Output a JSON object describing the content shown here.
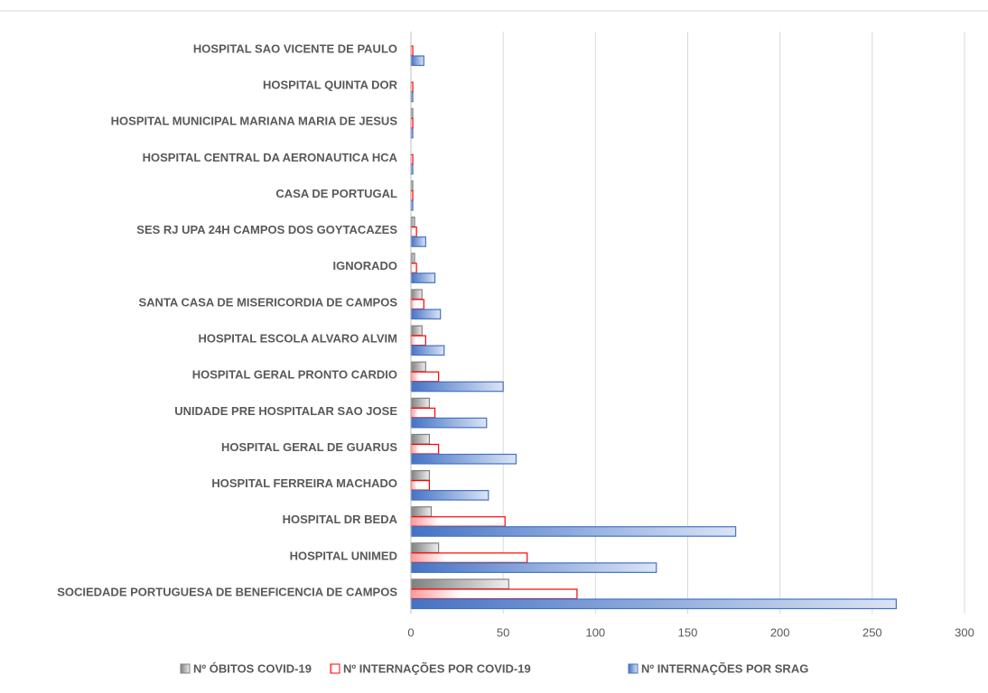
{
  "chart_data": {
    "type": "hbar",
    "categories": [
      "HOSPITAL SAO VICENTE DE PAULO",
      "HOSPITAL QUINTA DOR",
      "HOSPITAL MUNICIPAL MARIANA MARIA DE JESUS",
      "HOSPITAL CENTRAL DA AERONAUTICA HCA",
      "CASA DE PORTUGAL",
      "SES RJ UPA 24H CAMPOS DOS GOYTACAZES",
      "IGNORADO",
      "SANTA CASA DE MISERICORDIA DE CAMPOS",
      "HOSPITAL ESCOLA ALVARO ALVIM",
      "HOSPITAL GERAL PRONTO CARDIO",
      "UNIDADE PRE HOSPITALAR SAO JOSE",
      "HOSPITAL GERAL DE GUARUS",
      "HOSPITAL FERREIRA MACHADO",
      "HOSPITAL DR BEDA",
      "HOSPITAL UNIMED",
      "SOCIEDADE PORTUGUESA DE BENEFICENCIA DE CAMPOS"
    ],
    "series": [
      {
        "name": "Nº ÓBITOS COVID-19",
        "color": "#808080",
        "values": [
          0,
          0,
          1,
          0,
          1,
          2,
          2,
          6,
          6,
          8,
          10,
          10,
          10,
          11,
          15,
          53
        ]
      },
      {
        "name": "Nº INTERNAÇÕES POR COVID-19",
        "color": "#ff0000",
        "values": [
          1,
          1,
          1,
          1,
          1,
          3,
          3,
          7,
          8,
          15,
          13,
          15,
          10,
          51,
          63,
          90
        ]
      },
      {
        "name": "Nº INTERNAÇÕES POR SRAG",
        "color": "#4472c4",
        "values": [
          7,
          1,
          1,
          1,
          1,
          8,
          13,
          16,
          18,
          50,
          41,
          57,
          42,
          176,
          133,
          263
        ]
      }
    ],
    "xlim": [
      0,
      300
    ],
    "xticks": [
      0,
      50,
      100,
      150,
      200,
      250,
      300
    ],
    "grid": true,
    "legend": "bottom"
  }
}
